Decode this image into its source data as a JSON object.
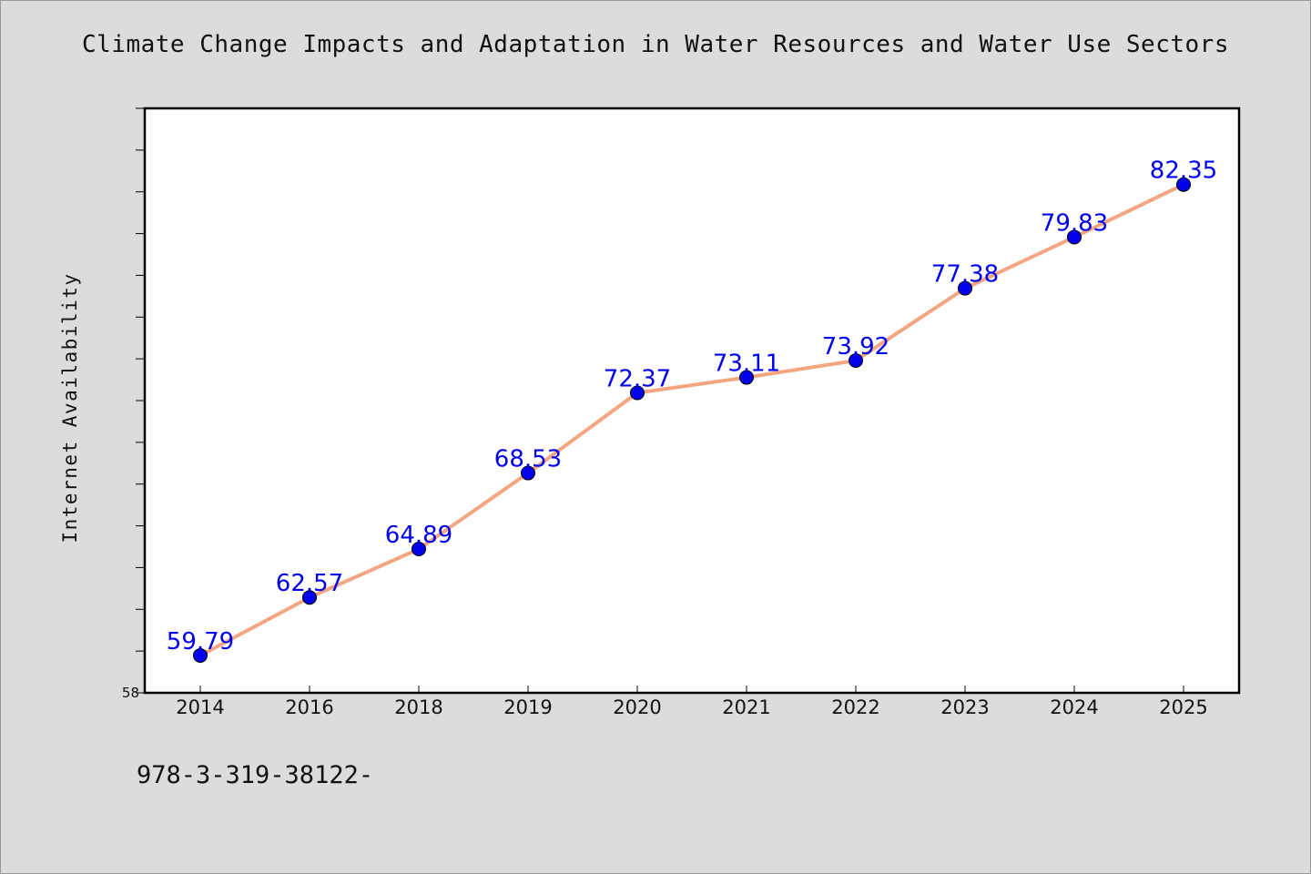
{
  "chart_data": {
    "type": "line",
    "title": "Climate Change Impacts and Adaptation in Water Resources and Water Use Sectors",
    "xlabel": "",
    "ylabel": "Internet Availability",
    "categories": [
      "2014",
      "2016",
      "2018",
      "2019",
      "2020",
      "2021",
      "2022",
      "2023",
      "2024",
      "2025"
    ],
    "series": [
      {
        "values": [
          59.79,
          62.57,
          64.89,
          68.53,
          72.37,
          73.11,
          73.92,
          77.38,
          79.83,
          82.35
        ],
        "labels": [
          "59.79",
          "62.57",
          "64.89",
          "68.53",
          "72.37",
          "73.11",
          "73.92",
          "77.38",
          "79.83",
          "82.35"
        ]
      }
    ],
    "ylim": [
      58,
      86
    ],
    "y_tick_labels": [
      "58"
    ],
    "y_minor_step": 2,
    "grid": false,
    "legend": "none",
    "colors": {
      "line": "#f4a582",
      "marker": "#0000ee",
      "label": "#0000ee",
      "plot_bg": "#ffffff",
      "page_bg": "#dcdcdc"
    }
  },
  "footnote": "978-3-319-38122-"
}
